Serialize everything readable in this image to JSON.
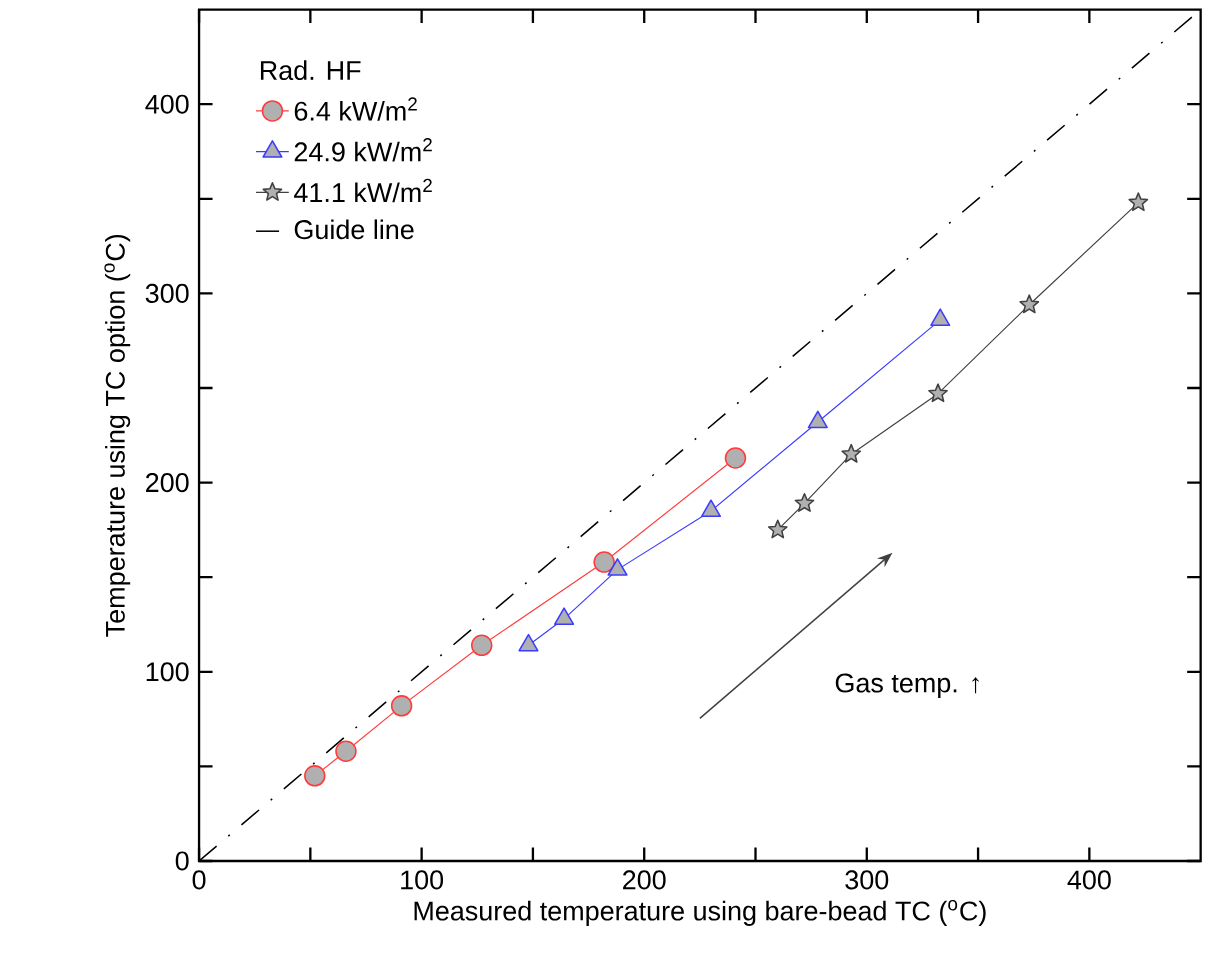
{
  "chart_data": {
    "type": "line",
    "xlabel": "Measured temperature using bare-bead TC ($^{o}$C)",
    "ylabel": "Temperature using TC option ($^{o}$C)",
    "legend_title": "Rad. HF",
    "legend": "top left",
    "xlim": [
      0,
      450
    ],
    "ylim": [
      0,
      450
    ],
    "xticks": [
      0,
      {
        "value": 50,
        "label": null
      },
      100,
      {
        "value": 150,
        "label": null
      },
      200,
      {
        "value": 250,
        "label": null
      },
      300,
      {
        "value": 350,
        "label": null
      },
      400
    ],
    "yticks": [
      0,
      {
        "value": 50,
        "label": null
      },
      100,
      {
        "value": 150,
        "label": null
      },
      200,
      {
        "value": 250,
        "label": null
      },
      300,
      {
        "value": 350,
        "label": null
      },
      400
    ],
    "annotations": [
      "Gas temp. ↑"
    ],
    "series": [
      {
        "name": "6.4   kW/m$^{2}$",
        "marker": "circle",
        "color": "#ff3b3b",
        "x": [
          52,
          66,
          91,
          127,
          182,
          241
        ],
        "values": [
          45,
          58,
          82,
          114,
          158,
          213
        ]
      },
      {
        "name": "24.9 kW/m$^{2}$",
        "marker": "triangle",
        "color": "#3b3bff",
        "x": [
          148,
          164,
          188,
          230,
          278,
          333
        ],
        "values": [
          114,
          128,
          154,
          185,
          232,
          286
        ]
      },
      {
        "name": "41.1 kW/m$^{2}$",
        "marker": "star",
        "color": "#404040",
        "x": [
          260,
          272,
          293,
          332,
          373,
          422
        ],
        "values": [
          175,
          189,
          215,
          247,
          294,
          348
        ]
      },
      {
        "name": "Guide line",
        "marker": "none",
        "line_style": "dashed",
        "color": "#000000",
        "x": [
          0,
          450
        ],
        "values": [
          0,
          450
        ]
      }
    ]
  }
}
